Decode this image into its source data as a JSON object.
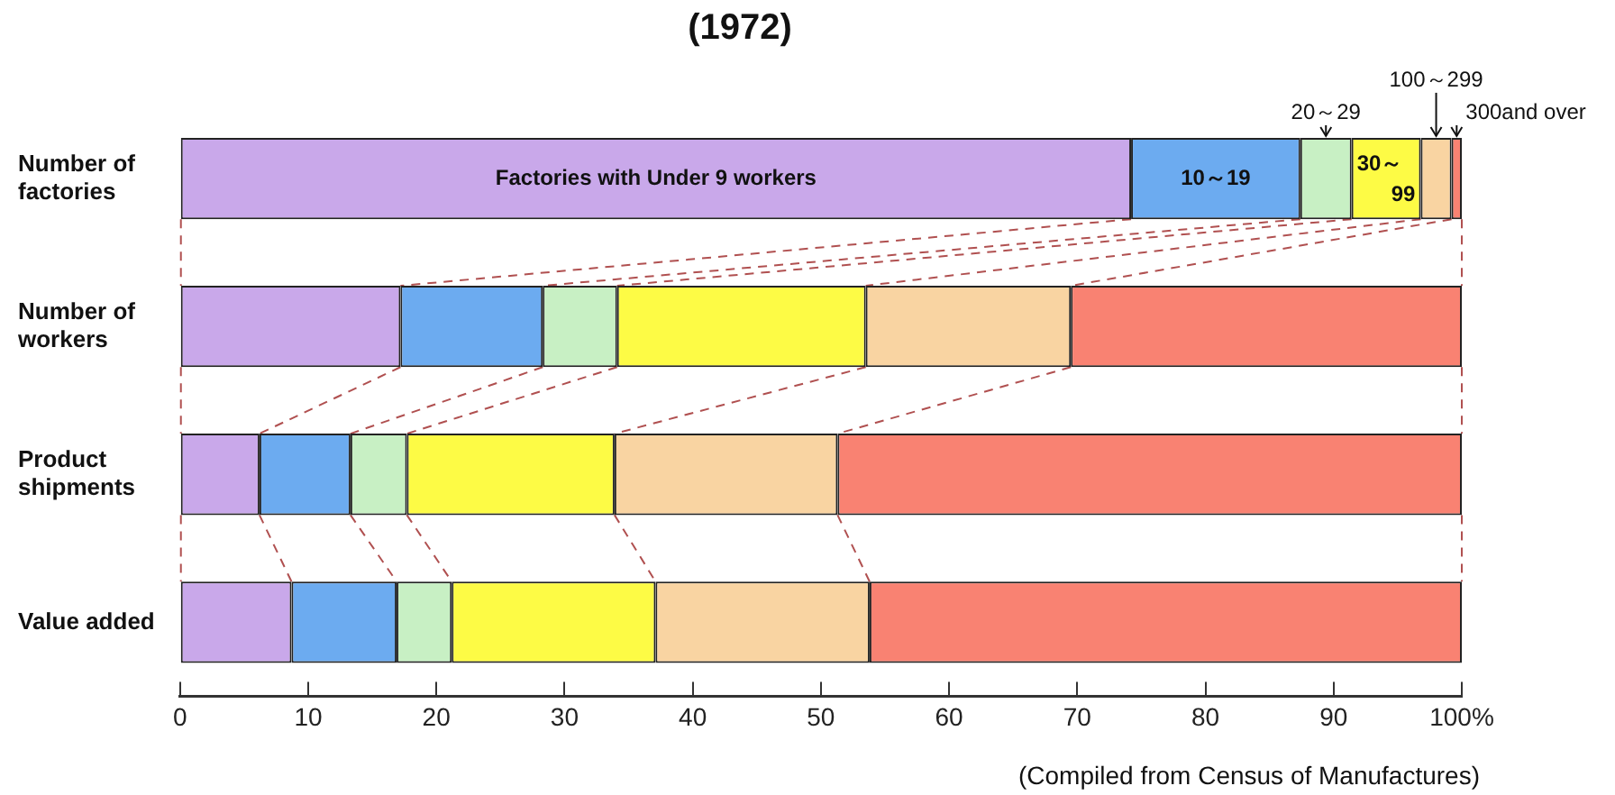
{
  "chart_data": {
    "type": "bar",
    "orientation": "horizontal",
    "stacked": true,
    "title": "(1972)",
    "categories": [
      "Number of factories",
      "Number of workers",
      "Product shipments",
      "Value added"
    ],
    "series": [
      {
        "name": "Factories with Under 9 workers",
        "color": "#c9a8ea",
        "values": [
          74.2,
          17.2,
          6.2,
          8.7
        ]
      },
      {
        "name": "10～19",
        "color": "#6cabf0",
        "values": [
          13.2,
          11.1,
          7.1,
          8.2
        ]
      },
      {
        "name": "20～29",
        "color": "#c8f0c4",
        "values": [
          4.0,
          5.8,
          4.4,
          4.3
        ]
      },
      {
        "name": "30～99",
        "color": "#fdfb45",
        "values": [
          5.4,
          19.4,
          16.2,
          15.9
        ]
      },
      {
        "name": "100～299",
        "color": "#f9d4a2",
        "values": [
          2.4,
          16.0,
          17.4,
          16.7
        ]
      },
      {
        "name": "300and over",
        "color": "#f98272",
        "values": [
          0.8,
          30.5,
          48.7,
          46.2
        ]
      }
    ],
    "xlim": [
      0,
      100
    ],
    "xticks": [
      0,
      10,
      20,
      30,
      40,
      50,
      60,
      70,
      80,
      90,
      {
        "value": 100,
        "label": "100%"
      }
    ],
    "grid": false,
    "legend": false,
    "annotations": [
      "(Compiled from Census of Manufactures)"
    ]
  }
}
